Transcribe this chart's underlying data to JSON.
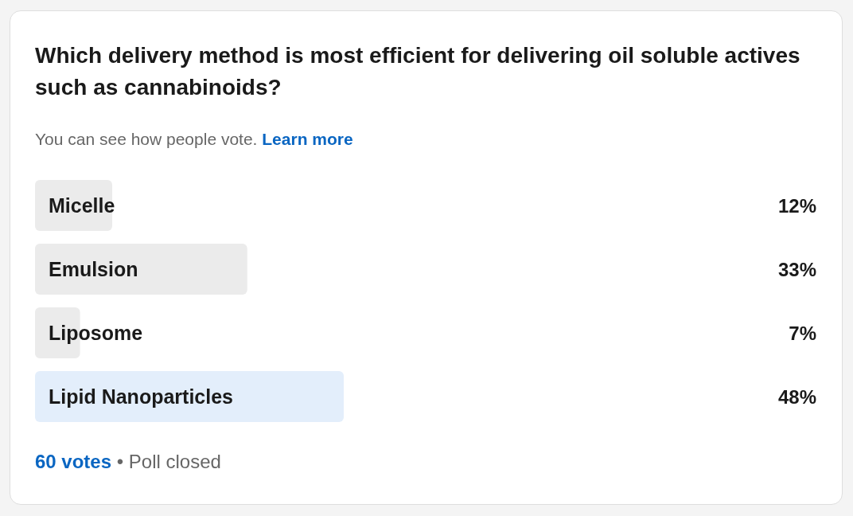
{
  "chart_data": {
    "type": "bar",
    "orientation": "horizontal",
    "title": "Which delivery method is most efficient for delivering oil soluble actives such as cannabinoids?",
    "subtitle": "You can see how people vote.",
    "categories": [
      "Micelle",
      "Emulsion",
      "Liposome",
      "Lipid Nanoparticles"
    ],
    "values": [
      12,
      33,
      7,
      48
    ],
    "colors": [
      "#ebebeb",
      "#ebebeb",
      "#ebebeb",
      "#e3eefb"
    ],
    "value_labels": [
      "12%",
      "33%",
      "7%",
      "48%"
    ],
    "tick_labels": false,
    "annotations": [
      "Learn more",
      "60 votes",
      "• Poll closed"
    ]
  }
}
